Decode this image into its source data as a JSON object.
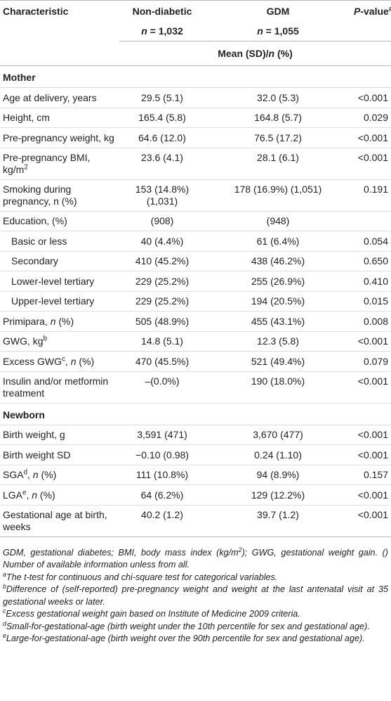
{
  "table": {
    "header": {
      "columns": [
        "Characteristic",
        "Non-diabetic",
        "GDM",
        [
          {
            "text": "P",
            "style": "italic"
          },
          "-value",
          {
            "text": "a",
            "style": "sup"
          }
        ]
      ],
      "counts": [
        [
          {
            "text": "n",
            "style": "italic"
          },
          " = 1,032"
        ],
        [
          {
            "text": "n",
            "style": "italic"
          },
          " = 1,055"
        ]
      ],
      "subheader": [
        "Mean (SD)/",
        {
          "text": "n",
          "style": "italic"
        },
        " (%)"
      ]
    },
    "sections": [
      {
        "title": "Mother",
        "rows": [
          {
            "cells": [
              "Age at delivery, years",
              "29.5 (5.1)",
              "32.0 (5.3)",
              "<0.001"
            ]
          },
          {
            "cells": [
              "Height, cm",
              "165.4 (5.8)",
              "164.8 (5.7)",
              "0.029"
            ]
          },
          {
            "cells": [
              "Pre-pregnancy weight, kg",
              "64.6 (12.0)",
              "76.5 (17.2)",
              "<0.001"
            ]
          },
          {
            "cells": [
              [
                "Pre-pregnancy BMI, kg/m",
                {
                  "text": "2",
                  "style": "sup"
                }
              ],
              "23.6 (4.1)",
              "28.1 (6.1)",
              "<0.001"
            ]
          },
          {
            "cells": [
              "Smoking during pregnancy, n (%)",
              "153 (14.8%) (1,031)",
              "178 (16.9%) (1,051)",
              "0.191"
            ]
          },
          {
            "cells": [
              "Education, (%)",
              "(908)",
              "(948)",
              null
            ]
          },
          {
            "cells": [
              "Basic or less",
              "40 (4.4%)",
              "61 (6.4%)",
              "0.054"
            ],
            "indent": true
          },
          {
            "cells": [
              "Secondary",
              "410 (45.2%)",
              "438 (46.2%)",
              "0.650"
            ],
            "indent": true
          },
          {
            "cells": [
              "Lower-level tertiary",
              "229 (25.2%)",
              "255 (26.9%)",
              "0.410"
            ],
            "indent": true
          },
          {
            "cells": [
              "Upper-level tertiary",
              "229 (25.2%)",
              "194 (20.5%)",
              "0.015"
            ],
            "indent": true
          },
          {
            "cells": [
              [
                "Primipara, ",
                {
                  "text": "n",
                  "style": "italic"
                },
                " (%)"
              ],
              "505 (48.9%)",
              "455 (43.1%)",
              "0.008"
            ]
          },
          {
            "cells": [
              [
                "GWG, kg",
                {
                  "text": "b",
                  "style": "sup"
                }
              ],
              "14.8 (5.1)",
              "12.3 (5.8)",
              "<0.001"
            ]
          },
          {
            "cells": [
              [
                "Excess GWG",
                {
                  "text": "c",
                  "style": "sup"
                },
                ", ",
                {
                  "text": "n",
                  "style": "italic"
                },
                " (%)"
              ],
              "470 (45.5%)",
              "521 (49.4%)",
              "0.079"
            ]
          },
          {
            "cells": [
              "Insulin and/or metformin treatment",
              "–(0.0%)",
              "190 (18.0%)",
              "<0.001"
            ]
          }
        ]
      },
      {
        "title": "Newborn",
        "rows": [
          {
            "cells": [
              "Birth weight, g",
              "3,591 (471)",
              "3,670 (477)",
              "<0.001"
            ]
          },
          {
            "cells": [
              "Birth weight SD",
              "−0.10 (0.98)",
              "0.24 (1.10)",
              "<0.001"
            ]
          },
          {
            "cells": [
              [
                "SGA",
                {
                  "text": "d",
                  "style": "sup"
                },
                ", ",
                {
                  "text": "n",
                  "style": "italic"
                },
                " (%)"
              ],
              "111 (10.8%)",
              "94 (8.9%)",
              "0.157"
            ]
          },
          {
            "cells": [
              [
                "LGA",
                {
                  "text": "e",
                  "style": "sup"
                },
                ", ",
                {
                  "text": "n",
                  "style": "italic"
                },
                " (%)"
              ],
              "64 (6.2%)",
              "129 (12.2%)",
              "<0.001"
            ]
          },
          {
            "cells": [
              "Gestational age at birth, weeks",
              "40.2 (1.2)",
              "39.7 (1.2)",
              "<0.001"
            ]
          }
        ]
      }
    ],
    "footnotes": [
      [
        "GDM, gestational diabetes; BMI, body mass index (kg/m",
        {
          "text": "2",
          "style": "sup"
        },
        "); GWG, gestational weight gain. () Number of available information unless from all."
      ],
      [
        {
          "text": "a",
          "style": "sup"
        },
        "The t-test for continuous and chi-square test for categorical variables."
      ],
      [
        {
          "text": "b",
          "style": "sup"
        },
        "Difference of (self-reported) pre-pregnancy weight and weight at the last antenatal visit at 35 gestational weeks or later."
      ],
      [
        {
          "text": "c",
          "style": "sup"
        },
        "Excess gestational weight gain based on Institute of Medicine 2009 criteria."
      ],
      [
        {
          "text": "d",
          "style": "sup"
        },
        "Small-for-gestational-age (birth weight under the 10th percentile for sex and gestational age)."
      ],
      [
        {
          "text": "e",
          "style": "sup"
        },
        "Large-for-gestational-age (birth weight over the 90th percentile for sex and gestational age)."
      ]
    ]
  }
}
